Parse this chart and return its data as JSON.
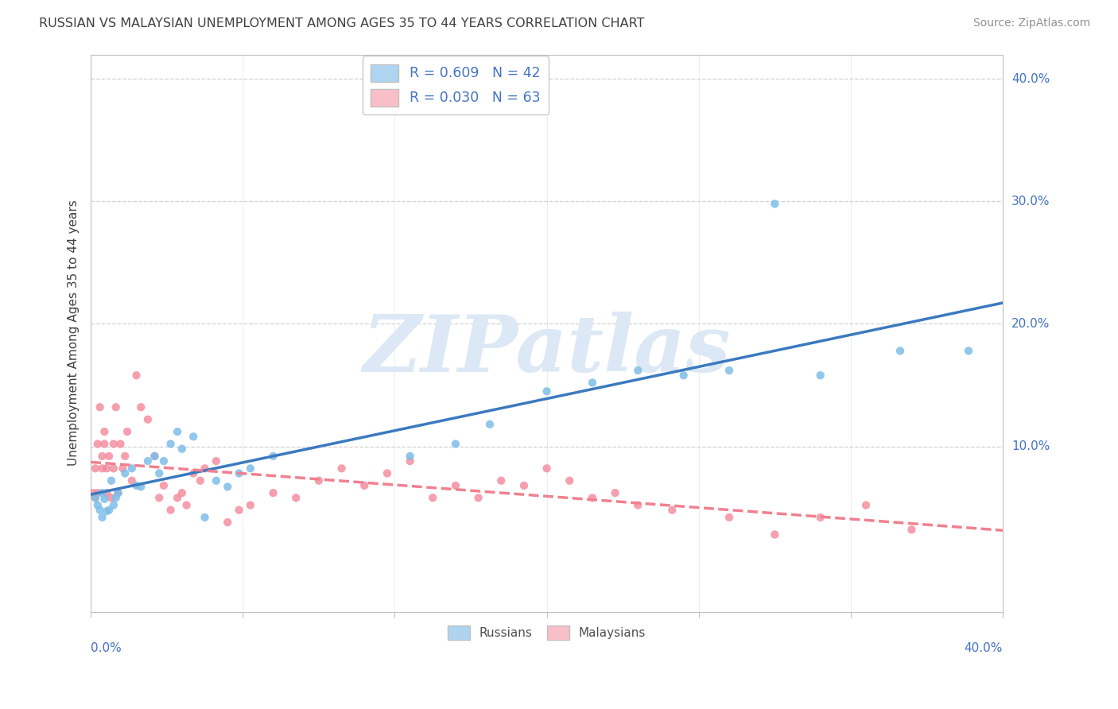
{
  "title": "RUSSIAN VS MALAYSIAN UNEMPLOYMENT AMONG AGES 35 TO 44 YEARS CORRELATION CHART",
  "source": "Source: ZipAtlas.com",
  "ylabel": "Unemployment Among Ages 35 to 44 years",
  "xlim": [
    0.0,
    0.4
  ],
  "ylim": [
    -0.035,
    0.42
  ],
  "ytick_values": [
    0.0,
    0.1,
    0.2,
    0.3,
    0.4
  ],
  "russian_color": "#7dbde8",
  "malaysian_color": "#f4879a",
  "russian_line_color": "#3a7abf",
  "malaysian_line_color": "#f08090",
  "russian_legend_color": "#aed4f0",
  "malaysian_legend_color": "#f9bfc8",
  "watermark": "ZIPatlas",
  "watermark_color": "#dce8f5",
  "title_color": "#404040",
  "source_color": "#909090",
  "axis_label_color": "#4472c4",
  "grid_color": "#d0d0d0",
  "background_color": "#ffffff",
  "R_russian": 0.609,
  "N_russian": 42,
  "R_malaysian": 0.03,
  "N_malaysian": 63,
  "russians_x": [
    0.002,
    0.003,
    0.004,
    0.005,
    0.005,
    0.006,
    0.007,
    0.008,
    0.009,
    0.01,
    0.011,
    0.012,
    0.015,
    0.018,
    0.02,
    0.022,
    0.025,
    0.028,
    0.03,
    0.032,
    0.035,
    0.038,
    0.04,
    0.045,
    0.05,
    0.055,
    0.06,
    0.065,
    0.07,
    0.08,
    0.14,
    0.16,
    0.175,
    0.2,
    0.22,
    0.24,
    0.26,
    0.28,
    0.3,
    0.32,
    0.355,
    0.385
  ],
  "russians_y": [
    0.058,
    0.052,
    0.048,
    0.062,
    0.042,
    0.057,
    0.047,
    0.048,
    0.072,
    0.052,
    0.058,
    0.062,
    0.078,
    0.082,
    0.068,
    0.067,
    0.088,
    0.092,
    0.078,
    0.088,
    0.102,
    0.112,
    0.098,
    0.108,
    0.042,
    0.072,
    0.067,
    0.078,
    0.082,
    0.092,
    0.092,
    0.102,
    0.118,
    0.145,
    0.152,
    0.162,
    0.158,
    0.162,
    0.298,
    0.158,
    0.178,
    0.178
  ],
  "malaysians_x": [
    0.001,
    0.002,
    0.002,
    0.003,
    0.003,
    0.004,
    0.005,
    0.005,
    0.006,
    0.006,
    0.007,
    0.007,
    0.008,
    0.009,
    0.01,
    0.01,
    0.011,
    0.012,
    0.013,
    0.014,
    0.015,
    0.016,
    0.018,
    0.02,
    0.022,
    0.025,
    0.028,
    0.03,
    0.032,
    0.035,
    0.038,
    0.04,
    0.042,
    0.045,
    0.048,
    0.05,
    0.055,
    0.06,
    0.065,
    0.07,
    0.08,
    0.09,
    0.1,
    0.11,
    0.12,
    0.13,
    0.14,
    0.15,
    0.16,
    0.17,
    0.18,
    0.19,
    0.2,
    0.21,
    0.22,
    0.23,
    0.24,
    0.255,
    0.28,
    0.3,
    0.32,
    0.34,
    0.36
  ],
  "malaysians_y": [
    0.062,
    0.082,
    0.058,
    0.102,
    0.062,
    0.132,
    0.082,
    0.092,
    0.102,
    0.112,
    0.062,
    0.082,
    0.092,
    0.058,
    0.082,
    0.102,
    0.132,
    0.062,
    0.102,
    0.082,
    0.092,
    0.112,
    0.072,
    0.158,
    0.132,
    0.122,
    0.092,
    0.058,
    0.068,
    0.048,
    0.058,
    0.062,
    0.052,
    0.078,
    0.072,
    0.082,
    0.088,
    0.038,
    0.048,
    0.052,
    0.062,
    0.058,
    0.072,
    0.082,
    0.068,
    0.078,
    0.088,
    0.058,
    0.068,
    0.058,
    0.072,
    0.068,
    0.082,
    0.072,
    0.058,
    0.062,
    0.052,
    0.048,
    0.042,
    0.028,
    0.042,
    0.052,
    0.032
  ]
}
